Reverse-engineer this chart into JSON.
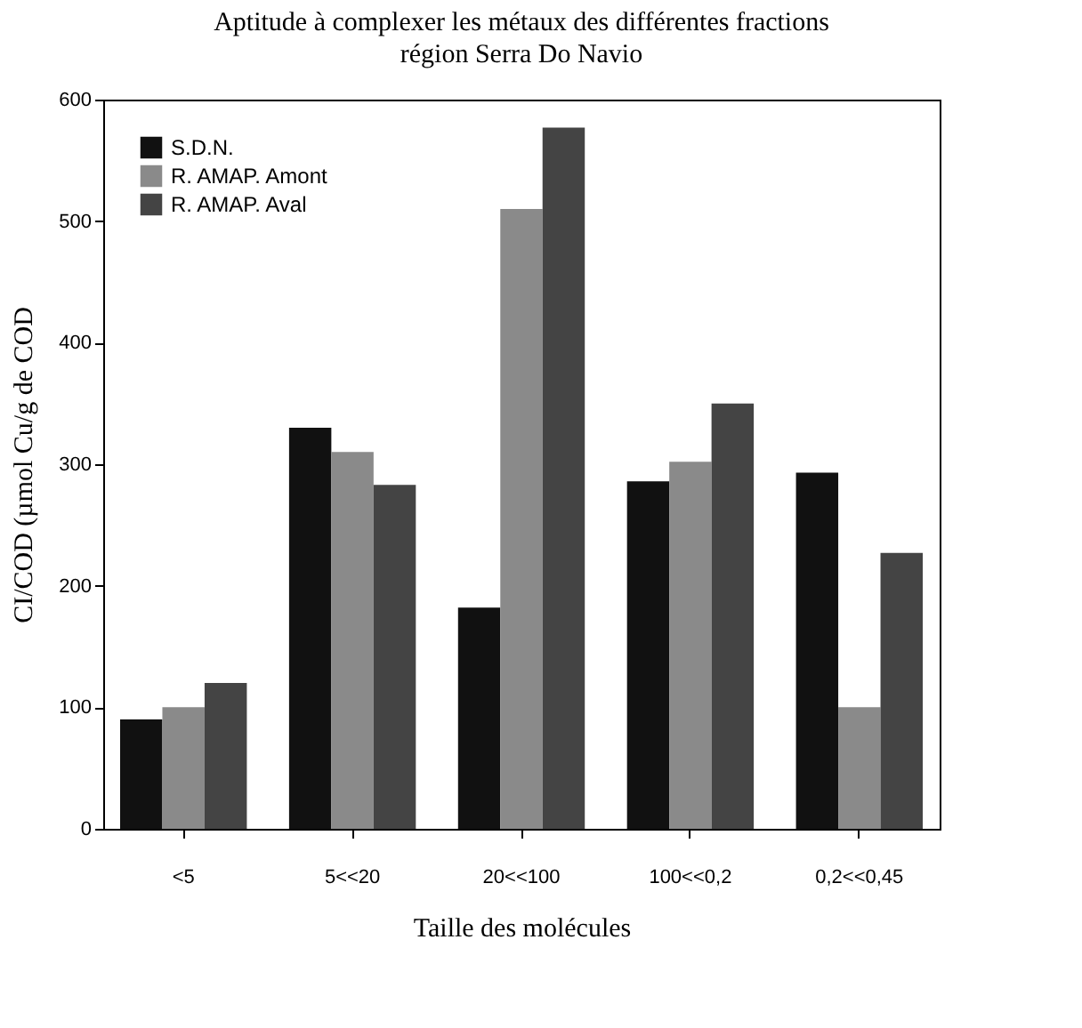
{
  "chart_data": {
    "type": "bar",
    "title": "Aptitude à complexer les métaux des différentes fractions",
    "subtitle": "région Serra Do Navio",
    "xlabel": "Taille des molécules",
    "ylabel": "CI/COD (µmol Cu/g de COD",
    "categories": [
      "<5",
      "5<<20",
      "20<<100",
      "100<<0,2",
      "0,2<<0,45"
    ],
    "series": [
      {
        "name": "S.D.N.",
        "color": "#111111",
        "values": [
          90,
          330,
          182,
          286,
          293
        ]
      },
      {
        "name": "R. AMAP. Amont",
        "color": "#8a8a8a",
        "values": [
          100,
          310,
          510,
          302,
          100
        ]
      },
      {
        "name": "R. AMAP. Aval",
        "color": "#444444",
        "values": [
          120,
          283,
          577,
          350,
          227
        ]
      }
    ],
    "ylim": [
      0,
      600
    ],
    "yticks": [
      0,
      100,
      200,
      300,
      400,
      500,
      600
    ],
    "grid": false,
    "legend": "top left"
  }
}
